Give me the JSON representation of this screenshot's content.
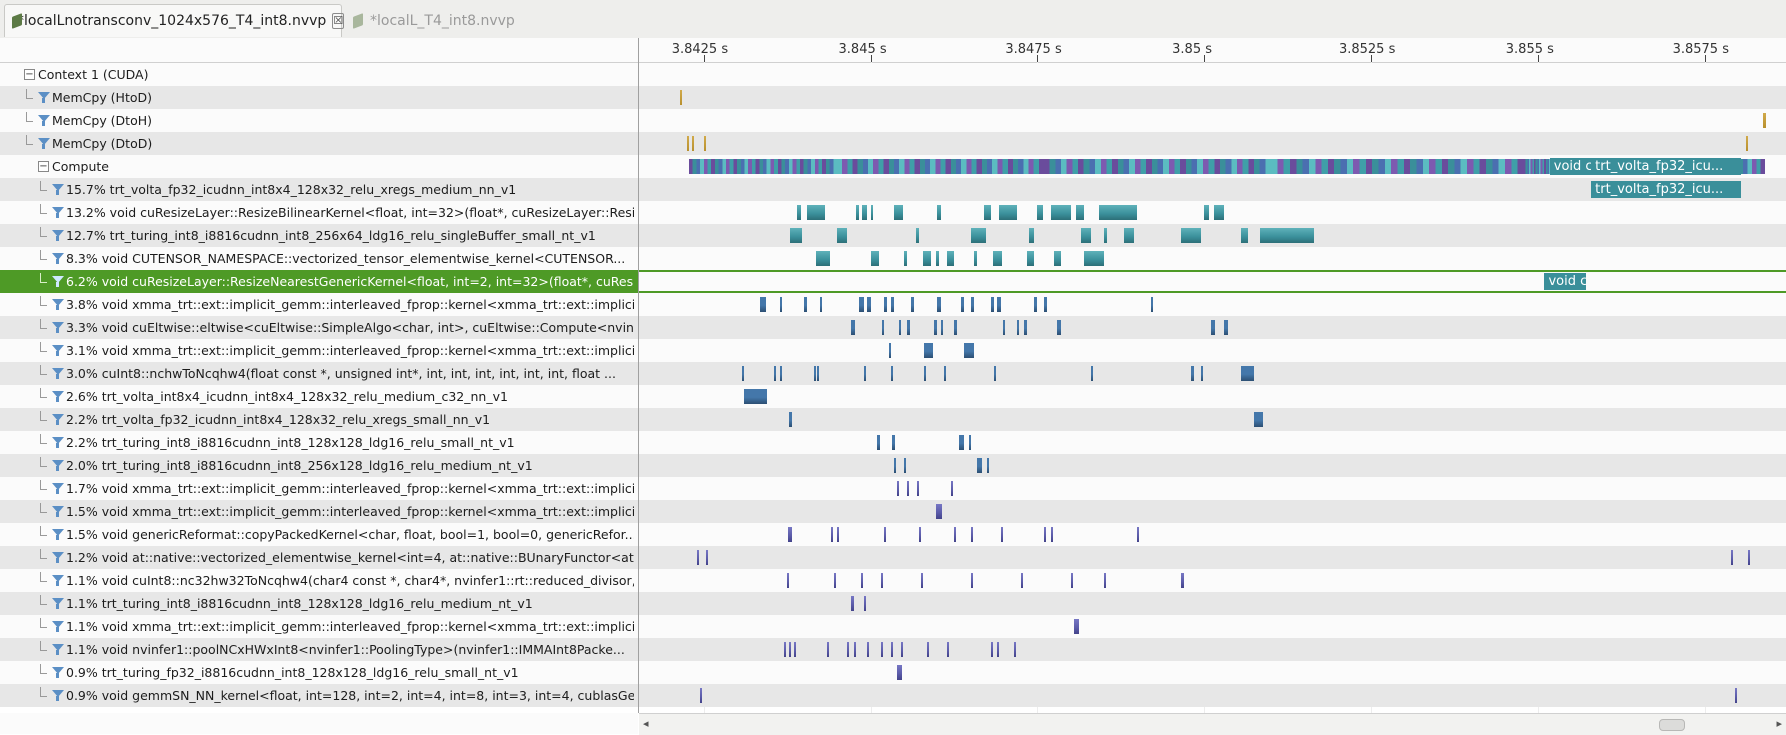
{
  "tabs": [
    {
      "label": "*localLnotransconv_1024x576_T4_int8.nvvp",
      "active": true,
      "close_glyph": "☒",
      "icon": "nvvp-file-icon"
    },
    {
      "label": "*localL_T4_int8.nvvp",
      "active": false,
      "icon": "nvvp-file-icon"
    }
  ],
  "ruler": {
    "ticks": [
      {
        "label": "3.8425 s",
        "t": 3.8425
      },
      {
        "label": "3.845 s",
        "t": 3.845
      },
      {
        "label": "3.8475 s",
        "t": 3.8475
      },
      {
        "label": "3.85 s",
        "t": 3.85
      },
      {
        "label": "3.8525 s",
        "t": 3.8525
      },
      {
        "label": "3.855 s",
        "t": 3.855
      },
      {
        "label": "3.8575 s",
        "t": 3.8575
      }
    ]
  },
  "rows": [
    {
      "label": "Context 1 (CUDA)",
      "level": 0,
      "kind": "expander",
      "glyph": "−"
    },
    {
      "label": "MemCpy (HtoD)",
      "level": 1,
      "kind": "filter"
    },
    {
      "label": "MemCpy (DtoH)",
      "level": 1,
      "kind": "filter"
    },
    {
      "label": "MemCpy (DtoD)",
      "level": 1,
      "kind": "filter"
    },
    {
      "label": "Compute",
      "level": 1,
      "kind": "expander",
      "glyph": "−"
    },
    {
      "label": "15.7% trt_volta_fp32_icudnn_int8x4_128x32_relu_xregs_medium_nn_v1",
      "level": 2,
      "kind": "filter"
    },
    {
      "label": "13.2% void cuResizeLayer::ResizeBilinearKernel<float, int=32>(float*, cuResizeLayer::Resi...",
      "level": 2,
      "kind": "filter"
    },
    {
      "label": "12.7% trt_turing_int8_i8816cudnn_int8_256x64_ldg16_relu_singleBuffer_small_nt_v1",
      "level": 2,
      "kind": "filter"
    },
    {
      "label": "8.3% void CUTENSOR_NAMESPACE::vectorized_tensor_elementwise_kernel<CUTENSOR...",
      "level": 2,
      "kind": "filter"
    },
    {
      "label": "6.2% void cuResizeLayer::ResizeNearestGenericKernel<float, int=2, int=32>(float*, cuResi...",
      "level": 2,
      "kind": "filter",
      "selected": true
    },
    {
      "label": "3.8% void xmma_trt::ext::implicit_gemm::interleaved_fprop::kernel<xmma_trt::ext::implici...",
      "level": 2,
      "kind": "filter"
    },
    {
      "label": "3.3% void cuEltwise::eltwise<cuEltwise::SimpleAlgo<char, int>, cuEltwise::Compute<nvinf...",
      "level": 2,
      "kind": "filter"
    },
    {
      "label": "3.1% void xmma_trt::ext::implicit_gemm::interleaved_fprop::kernel<xmma_trt::ext::implici...",
      "level": 2,
      "kind": "filter"
    },
    {
      "label": "3.0% cuInt8::nchwToNcqhw4(float const *, unsigned int*, int, int, int, int, int, int, float ...",
      "level": 2,
      "kind": "filter"
    },
    {
      "label": "2.6% trt_volta_int8x4_icudnn_int8x4_128x32_relu_medium_c32_nn_v1",
      "level": 2,
      "kind": "filter"
    },
    {
      "label": "2.2% trt_volta_fp32_icudnn_int8x4_128x32_relu_xregs_small_nn_v1",
      "level": 2,
      "kind": "filter"
    },
    {
      "label": "2.2% trt_turing_int8_i8816cudnn_int8_128x128_ldg16_relu_small_nt_v1",
      "level": 2,
      "kind": "filter"
    },
    {
      "label": "2.0% trt_turing_int8_i8816cudnn_int8_256x128_ldg16_relu_medium_nt_v1",
      "level": 2,
      "kind": "filter"
    },
    {
      "label": "1.7% void xmma_trt::ext::implicit_gemm::interleaved_fprop::kernel<xmma_trt::ext::implici...",
      "level": 2,
      "kind": "filter"
    },
    {
      "label": "1.5% void xmma_trt::ext::implicit_gemm::interleaved_fprop::kernel<xmma_trt::ext::implici...",
      "level": 2,
      "kind": "filter"
    },
    {
      "label": "1.5% void genericReformat::copyPackedKernel<char, float, bool=1, bool=0, genericRefor...",
      "level": 2,
      "kind": "filter"
    },
    {
      "label": "1.2% void at::native::vectorized_elementwise_kernel<int=4, at::native::BUnaryFunctor<at:...",
      "level": 2,
      "kind": "filter"
    },
    {
      "label": "1.1% void cuInt8::nc32hw32ToNcqhw4(char4 const *, char4*, nvinfer1::rt::reduced_divisor, int,...",
      "level": 2,
      "kind": "filter"
    },
    {
      "label": "1.1% trt_turing_int8_i8816cudnn_int8_128x128_ldg16_relu_medium_nt_v1",
      "level": 2,
      "kind": "filter"
    },
    {
      "label": "1.1% void xmma_trt::ext::implicit_gemm::interleaved_fprop::kernel<xmma_trt::ext::implici...",
      "level": 2,
      "kind": "filter"
    },
    {
      "label": "1.1% void nvinfer1::poolNCxHWxInt8<nvinfer1::PoolingType>(nvinfer1::IMMAInt8Packe...",
      "level": 2,
      "kind": "filter"
    },
    {
      "label": "0.9% trt_turing_fp32_i8816cudnn_int8_128x128_ldg16_relu_small_nt_v1",
      "level": 2,
      "kind": "filter"
    },
    {
      "label": "0.9% void gemmSN_NN_kernel<float, int=128, int=2, int=4, int=8, int=3, int=4, cublasGe...",
      "level": 2,
      "kind": "filter"
    }
  ],
  "timeline": {
    "t_start": 3.84153,
    "t_end": 3.85872,
    "colors": {
      "memcpy": "#b8902e",
      "teal": "#3a8f9a",
      "blue": "#4477aa",
      "purple": "#5a5aa8",
      "selected_outline": "#4e9a26"
    },
    "bars": [
      {
        "row": 1,
        "segments": [
          [
            3.84215,
            3.84218
          ]
        ],
        "color": "memcpy"
      },
      {
        "row": 2,
        "segments": [
          [
            3.85838,
            3.85842
          ]
        ],
        "color": "memcpy"
      },
      {
        "row": 3,
        "segments": [
          [
            3.84225,
            3.84227
          ],
          [
            3.84232,
            3.84234
          ],
          [
            3.8425,
            3.84253
          ],
          [
            3.85812,
            3.85815
          ]
        ],
        "color": "memcpy"
      },
      {
        "row": 4,
        "segments": [
          [
            3.84228,
            3.8445
          ],
          [
            3.8445,
            3.8476
          ],
          [
            3.8476,
            3.851
          ],
          [
            3.851,
            3.8548
          ],
          [
            3.8548,
            3.8558
          ],
          [
            3.8558,
            3.8584
          ]
        ],
        "color": "compute",
        "labels": [
          {
            "text": "void c...",
            "t0": 3.85518,
            "t1": 3.8558
          },
          {
            "text": "trt_volta_fp32_icu...",
            "t0": 3.8558,
            "t1": 3.85805
          }
        ]
      },
      {
        "row": 5,
        "segments": [
          [
            3.8558,
            3.85805
          ]
        ],
        "color": "teal",
        "labels": [
          {
            "text": "trt_volta_fp32_icu...",
            "t0": 3.8558,
            "t1": 3.85805
          }
        ]
      },
      {
        "row": 6,
        "segments": [
          [
            3.8439,
            3.84396
          ],
          [
            3.84405,
            3.84432
          ],
          [
            3.84478,
            3.84482
          ],
          [
            3.84487,
            3.84494
          ],
          [
            3.845,
            3.84504
          ],
          [
            3.84535,
            3.84548
          ],
          [
            3.846,
            3.84605
          ],
          [
            3.8467,
            3.8468
          ],
          [
            3.84693,
            3.8472
          ],
          [
            3.8475,
            3.84758
          ],
          [
            3.8477,
            3.848
          ],
          [
            3.84808,
            3.8482
          ],
          [
            3.84842,
            3.849
          ],
          [
            3.85,
            3.85007
          ],
          [
            3.85015,
            3.8503
          ]
        ],
        "color": "teal"
      },
      {
        "row": 7,
        "segments": [
          [
            3.8438,
            3.84397
          ],
          [
            3.8445,
            3.84465
          ],
          [
            3.84568,
            3.84573
          ],
          [
            3.8465,
            3.84673
          ],
          [
            3.84738,
            3.84745
          ],
          [
            3.84815,
            3.8483
          ],
          [
            3.8485,
            3.84855
          ],
          [
            3.8488,
            3.84895
          ],
          [
            3.84965,
            3.84995
          ],
          [
            3.85055,
            3.85065
          ],
          [
            3.85083,
            3.85092
          ],
          [
            3.85093,
            3.85165
          ]
        ],
        "color": "teal"
      },
      {
        "row": 8,
        "segments": [
          [
            3.84418,
            3.8444
          ],
          [
            3.845,
            3.84512
          ],
          [
            3.8455,
            3.84555
          ],
          [
            3.84578,
            3.8459
          ],
          [
            3.84598,
            3.84602
          ],
          [
            3.84615,
            3.84625
          ],
          [
            3.84655,
            3.8466
          ],
          [
            3.84683,
            3.84697
          ],
          [
            3.84735,
            3.84745
          ],
          [
            3.84775,
            3.84785
          ],
          [
            3.8482,
            3.8485
          ]
        ],
        "color": "teal"
      },
      {
        "row": 9,
        "segments": [
          [
            3.8551,
            3.85572
          ]
        ],
        "color": "teal",
        "labels": [
          {
            "text": "void c...",
            "t0": 3.8551,
            "t1": 3.85572
          }
        ]
      },
      {
        "row": 10,
        "segments": [
          [
            3.84335,
            3.84343
          ],
          [
            3.84365,
            3.84368
          ],
          [
            3.844,
            3.84405
          ],
          [
            3.84425,
            3.84428
          ],
          [
            3.84483,
            3.8449
          ],
          [
            3.84495,
            3.845
          ],
          [
            3.8452,
            3.84525
          ],
          [
            3.8453,
            3.84535
          ],
          [
            3.8456,
            3.84565
          ],
          [
            3.846,
            3.84605
          ],
          [
            3.84635,
            3.8464
          ],
          [
            3.8465,
            3.84655
          ],
          [
            3.8468,
            3.84685
          ],
          [
            3.8469,
            3.84695
          ],
          [
            3.84745,
            3.8475
          ],
          [
            3.8476,
            3.84765
          ],
          [
            3.8492,
            3.84922
          ]
        ],
        "color": "blue"
      },
      {
        "row": 11,
        "segments": [
          [
            3.8447,
            3.84477
          ],
          [
            3.84517,
            3.8452
          ],
          [
            3.84542,
            3.84545
          ],
          [
            3.84555,
            3.84559
          ],
          [
            3.84595,
            3.846
          ],
          [
            3.84605,
            3.84608
          ],
          [
            3.84625,
            3.8463
          ],
          [
            3.84698,
            3.84702
          ],
          [
            3.8472,
            3.84723
          ],
          [
            3.8473,
            3.84735
          ],
          [
            3.8478,
            3.84785
          ],
          [
            3.8501,
            3.85017
          ],
          [
            3.8503,
            3.85035
          ]
        ],
        "color": "blue"
      },
      {
        "row": 12,
        "segments": [
          [
            3.84528,
            3.8453
          ],
          [
            3.8458,
            3.84593
          ],
          [
            3.8464,
            3.84655
          ]
        ],
        "color": "blue"
      },
      {
        "row": 13,
        "segments": [
          [
            3.84307,
            3.8431
          ],
          [
            3.84355,
            3.84357
          ],
          [
            3.84365,
            3.84368
          ],
          [
            3.84415,
            3.84417
          ],
          [
            3.8442,
            3.84423
          ],
          [
            3.8449,
            3.84492
          ],
          [
            3.8453,
            3.84533
          ],
          [
            3.8458,
            3.84582
          ],
          [
            3.8461,
            3.84612
          ],
          [
            3.84685,
            3.84688
          ],
          [
            3.8483,
            3.84833
          ],
          [
            3.8498,
            3.84985
          ],
          [
            3.84995,
            3.84998
          ],
          [
            3.85055,
            3.85075
          ]
        ],
        "color": "blue"
      },
      {
        "row": 14,
        "segments": [
          [
            3.8431,
            3.84345
          ]
        ],
        "color": "blue"
      },
      {
        "row": 15,
        "segments": [
          [
            3.84378,
            3.84382
          ],
          [
            3.85075,
            3.85088
          ]
        ],
        "color": "blue"
      },
      {
        "row": 16,
        "segments": [
          [
            3.8451,
            3.84514
          ],
          [
            3.84532,
            3.84536
          ],
          [
            3.84633,
            3.8464
          ],
          [
            3.84648,
            3.84651
          ]
        ],
        "color": "blue"
      },
      {
        "row": 17,
        "segments": [
          [
            3.84535,
            3.84538
          ],
          [
            3.8455,
            3.84553
          ],
          [
            3.8466,
            3.84667
          ],
          [
            3.84675,
            3.84678
          ]
        ],
        "color": "blue"
      },
      {
        "row": 18,
        "segments": [
          [
            3.8454,
            3.84543
          ],
          [
            3.84555,
            3.84558
          ],
          [
            3.8457,
            3.84573
          ],
          [
            3.8462,
            3.84623
          ]
        ],
        "color": "purple"
      },
      {
        "row": 19,
        "segments": [
          [
            3.84598,
            3.84607
          ]
        ],
        "color": "purple"
      },
      {
        "row": 20,
        "segments": [
          [
            3.84377,
            3.84379
          ],
          [
            3.8438,
            3.84382
          ],
          [
            3.8444,
            3.84442
          ],
          [
            3.8445,
            3.84452
          ],
          [
            3.8452,
            3.84522
          ],
          [
            3.84572,
            3.84574
          ],
          [
            3.84625,
            3.84627
          ],
          [
            3.8465,
            3.84652
          ],
          [
            3.84695,
            3.84697
          ],
          [
            3.8476,
            3.84762
          ],
          [
            3.8477,
            3.84772
          ],
          [
            3.849,
            3.84902
          ]
        ],
        "color": "purple"
      },
      {
        "row": 21,
        "segments": [
          [
            3.8424,
            3.84242
          ],
          [
            3.84253,
            3.84256
          ],
          [
            3.8579,
            3.85793
          ],
          [
            3.85815,
            3.85818
          ]
        ],
        "color": "purple"
      },
      {
        "row": 22,
        "segments": [
          [
            3.84375,
            3.84377
          ],
          [
            3.84445,
            3.84447
          ],
          [
            3.84485,
            3.84487
          ],
          [
            3.84515,
            3.84517
          ],
          [
            3.84575,
            3.84577
          ],
          [
            3.8465,
            3.84652
          ],
          [
            3.84725,
            3.84727
          ],
          [
            3.848,
            3.84802
          ],
          [
            3.8485,
            3.84852
          ],
          [
            3.84965,
            3.8497
          ]
        ],
        "color": "purple"
      },
      {
        "row": 23,
        "segments": [
          [
            3.8447,
            3.84475
          ],
          [
            3.8449,
            3.84492
          ]
        ],
        "color": "purple"
      },
      {
        "row": 24,
        "segments": [
          [
            3.84805,
            3.84812
          ]
        ],
        "color": "purple"
      },
      {
        "row": 25,
        "segments": [
          [
            3.8437,
            3.84372
          ],
          [
            3.84378,
            3.8438
          ],
          [
            3.84385,
            3.84387
          ],
          [
            3.84435,
            3.84437
          ],
          [
            3.84465,
            3.84468
          ],
          [
            3.84475,
            3.84477
          ],
          [
            3.84495,
            3.84497
          ],
          [
            3.84515,
            3.84517
          ],
          [
            3.8453,
            3.84532
          ],
          [
            3.84545,
            3.84547
          ],
          [
            3.84585,
            3.84587
          ],
          [
            3.84615,
            3.84617
          ],
          [
            3.8468,
            3.84682
          ],
          [
            3.8469,
            3.84692
          ],
          [
            3.84715,
            3.84717
          ]
        ],
        "color": "purple"
      },
      {
        "row": 26,
        "segments": [
          [
            3.8454,
            3.84547
          ]
        ],
        "color": "purple"
      },
      {
        "row": 27,
        "segments": [
          [
            3.84245,
            3.84248
          ],
          [
            3.85795,
            3.85798
          ]
        ],
        "color": "purple"
      }
    ]
  },
  "scrollbar": {
    "left_arrow": "◂",
    "right_arrow": "▸",
    "view_fraction_start": 0.56,
    "view_fraction_end": 0.58
  }
}
